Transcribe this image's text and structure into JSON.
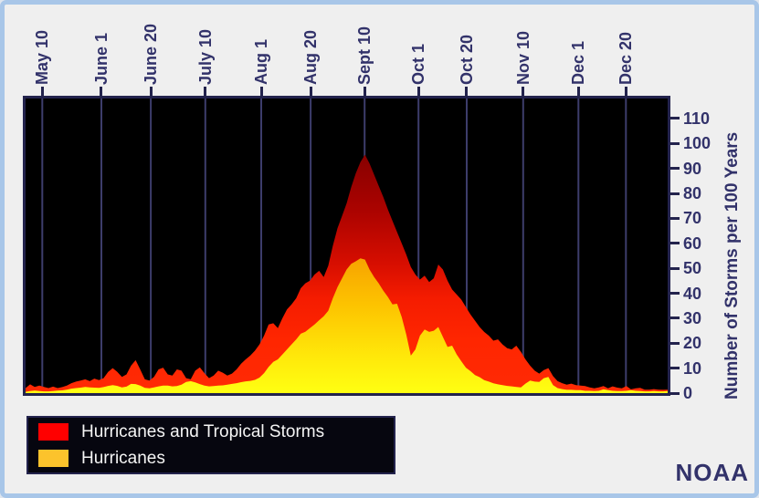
{
  "branding": {
    "noaa": "NOAA"
  },
  "colors": {
    "panel_border": "#a8c6e8",
    "panel_bg": "#efefef",
    "text_navy": "#32326a",
    "plot_frame": "#23234d",
    "gridline": "#3d3d6b",
    "plot_bg": "#000000",
    "legend_bg": "#06060f",
    "legend_border": "#23234d",
    "legend_text": "#f5f5f5",
    "storms_red": "#ff0000",
    "hurricanes_orange": "#fcc32c"
  },
  "chart_data": {
    "type": "area",
    "title": "",
    "grid": "vertical-only",
    "plot_bg": "#000000",
    "ylim": [
      0,
      118
    ],
    "x_axis": {
      "position": "top",
      "ticks": [
        {
          "label": "May 10",
          "pos": 0.026
        },
        {
          "label": "June 1",
          "pos": 0.118
        },
        {
          "label": "June 20",
          "pos": 0.195
        },
        {
          "label": "July 10",
          "pos": 0.28
        },
        {
          "label": "Aug 1",
          "pos": 0.367
        },
        {
          "label": "Aug 20",
          "pos": 0.444
        },
        {
          "label": "Sept 10",
          "pos": 0.528
        },
        {
          "label": "Oct 1",
          "pos": 0.612
        },
        {
          "label": "Oct 20",
          "pos": 0.687
        },
        {
          "label": "Nov 10",
          "pos": 0.775
        },
        {
          "label": "Dec 1",
          "pos": 0.861
        },
        {
          "label": "Dec 20",
          "pos": 0.935
        }
      ]
    },
    "y_axis": {
      "position": "right",
      "label": "Number of Storms per 100 Years",
      "min": 0,
      "max": 110,
      "tick_step": 10,
      "tick_values": [
        0,
        10,
        20,
        30,
        40,
        50,
        60,
        70,
        80,
        90,
        100,
        110
      ]
    },
    "sampling_note": "values sampled uniformly left-to-right across the season (May through December)",
    "n_samples": 141,
    "series": [
      {
        "name": "Hurricanes and Tropical Storms",
        "color": "#ff0000",
        "gradient": [
          [
            0.0,
            "#5f0000"
          ],
          [
            0.18,
            "#850000"
          ],
          [
            0.38,
            "#ab0300"
          ],
          [
            0.55,
            "#d40d00"
          ],
          [
            0.68,
            "#f51c00"
          ],
          [
            0.82,
            "#ff2600"
          ],
          [
            1.0,
            "#ff2a05"
          ]
        ],
        "peak": {
          "label": "Sept 10",
          "value": 96
        },
        "values": [
          2.0,
          3.5,
          2.5,
          3.0,
          2.5,
          2.0,
          2.6,
          2.0,
          2.4,
          3.0,
          4.0,
          4.6,
          5.0,
          5.5,
          4.8,
          5.8,
          5.2,
          6.0,
          8.5,
          10.0,
          8.5,
          6.5,
          7.5,
          11.0,
          13.2,
          9.5,
          5.5,
          5.0,
          6.5,
          9.5,
          10.2,
          7.5,
          7.0,
          9.5,
          9.0,
          6.0,
          5.5,
          9.0,
          10.3,
          8.0,
          6.0,
          7.0,
          9.0,
          8.2,
          7.0,
          7.8,
          9.5,
          11.8,
          13.5,
          15.0,
          17.0,
          19.5,
          23.0,
          27.5,
          28.0,
          26.0,
          30.0,
          33.5,
          35.5,
          38.0,
          42.0,
          44.0,
          45.0,
          47.5,
          49.0,
          46.5,
          51.0,
          59.0,
          66.0,
          71.0,
          76.0,
          82.5,
          88.0,
          92.5,
          95.5,
          92.0,
          87.5,
          83.0,
          78.5,
          73.5,
          69.0,
          64.5,
          60.0,
          55.5,
          50.5,
          47.5,
          45.5,
          47.0,
          44.5,
          46.0,
          51.5,
          49.5,
          45.0,
          41.5,
          39.5,
          37.5,
          34.5,
          31.5,
          29.0,
          26.5,
          24.5,
          23.0,
          21.0,
          21.5,
          19.5,
          18.0,
          17.5,
          19.0,
          16.5,
          13.5,
          11.0,
          9.0,
          7.8,
          9.2,
          10.0,
          6.8,
          4.8,
          4.0,
          3.4,
          3.8,
          3.2,
          3.0,
          2.8,
          2.3,
          1.9,
          2.3,
          2.8,
          1.9,
          2.7,
          2.2,
          1.9,
          2.8,
          1.5,
          1.9,
          2.1,
          1.4,
          1.4,
          1.6,
          1.4,
          1.3,
          1.4
        ]
      },
      {
        "name": "Hurricanes",
        "color": "#fcc32c",
        "gradient": [
          [
            0.0,
            "#c65a00"
          ],
          [
            0.3,
            "#e88000"
          ],
          [
            0.5,
            "#f59b00"
          ],
          [
            0.7,
            "#fdc300"
          ],
          [
            0.88,
            "#ffe90a"
          ],
          [
            1.0,
            "#ffff12"
          ]
        ],
        "peak": {
          "label": "Sept 10",
          "value": 54
        },
        "values": [
          0.5,
          0.8,
          1.0,
          0.8,
          0.7,
          0.7,
          0.8,
          1.0,
          1.1,
          1.4,
          1.8,
          2.0,
          2.2,
          2.5,
          2.3,
          2.2,
          2.1,
          2.4,
          2.9,
          3.2,
          2.9,
          2.3,
          2.6,
          3.7,
          3.6,
          3.0,
          2.1,
          1.9,
          2.3,
          2.7,
          3.0,
          3.0,
          2.7,
          2.8,
          3.4,
          4.5,
          4.8,
          4.3,
          3.6,
          3.0,
          2.7,
          2.8,
          3.0,
          3.1,
          3.4,
          3.7,
          4.0,
          4.4,
          4.7,
          4.9,
          5.3,
          6.2,
          8.0,
          10.5,
          12.5,
          13.5,
          15.5,
          17.5,
          19.5,
          21.5,
          23.8,
          24.6,
          26.0,
          27.5,
          29.2,
          30.8,
          33.0,
          38.0,
          42.5,
          46.0,
          49.5,
          51.8,
          52.8,
          54.0,
          53.5,
          49.5,
          46.5,
          44.0,
          41.0,
          38.5,
          35.5,
          35.8,
          30.5,
          23.5,
          15.0,
          17.5,
          23.0,
          25.5,
          24.5,
          25.0,
          26.5,
          22.5,
          18.5,
          19.0,
          15.5,
          12.8,
          10.2,
          8.8,
          7.2,
          6.4,
          5.2,
          4.6,
          3.9,
          3.5,
          3.2,
          2.9,
          2.7,
          2.5,
          2.3,
          3.8,
          5.0,
          4.6,
          4.5,
          6.0,
          6.5,
          3.2,
          2.0,
          1.6,
          1.3,
          1.3,
          1.2,
          1.2,
          0.9,
          0.9,
          0.8,
          0.9,
          1.5,
          1.2,
          0.9,
          0.8,
          0.8,
          0.9,
          1.2,
          0.9,
          0.8,
          0.7,
          0.7,
          0.8,
          0.7,
          0.7,
          0.8
        ]
      }
    ],
    "legend": {
      "position": "bottom-left",
      "background": "black"
    }
  }
}
